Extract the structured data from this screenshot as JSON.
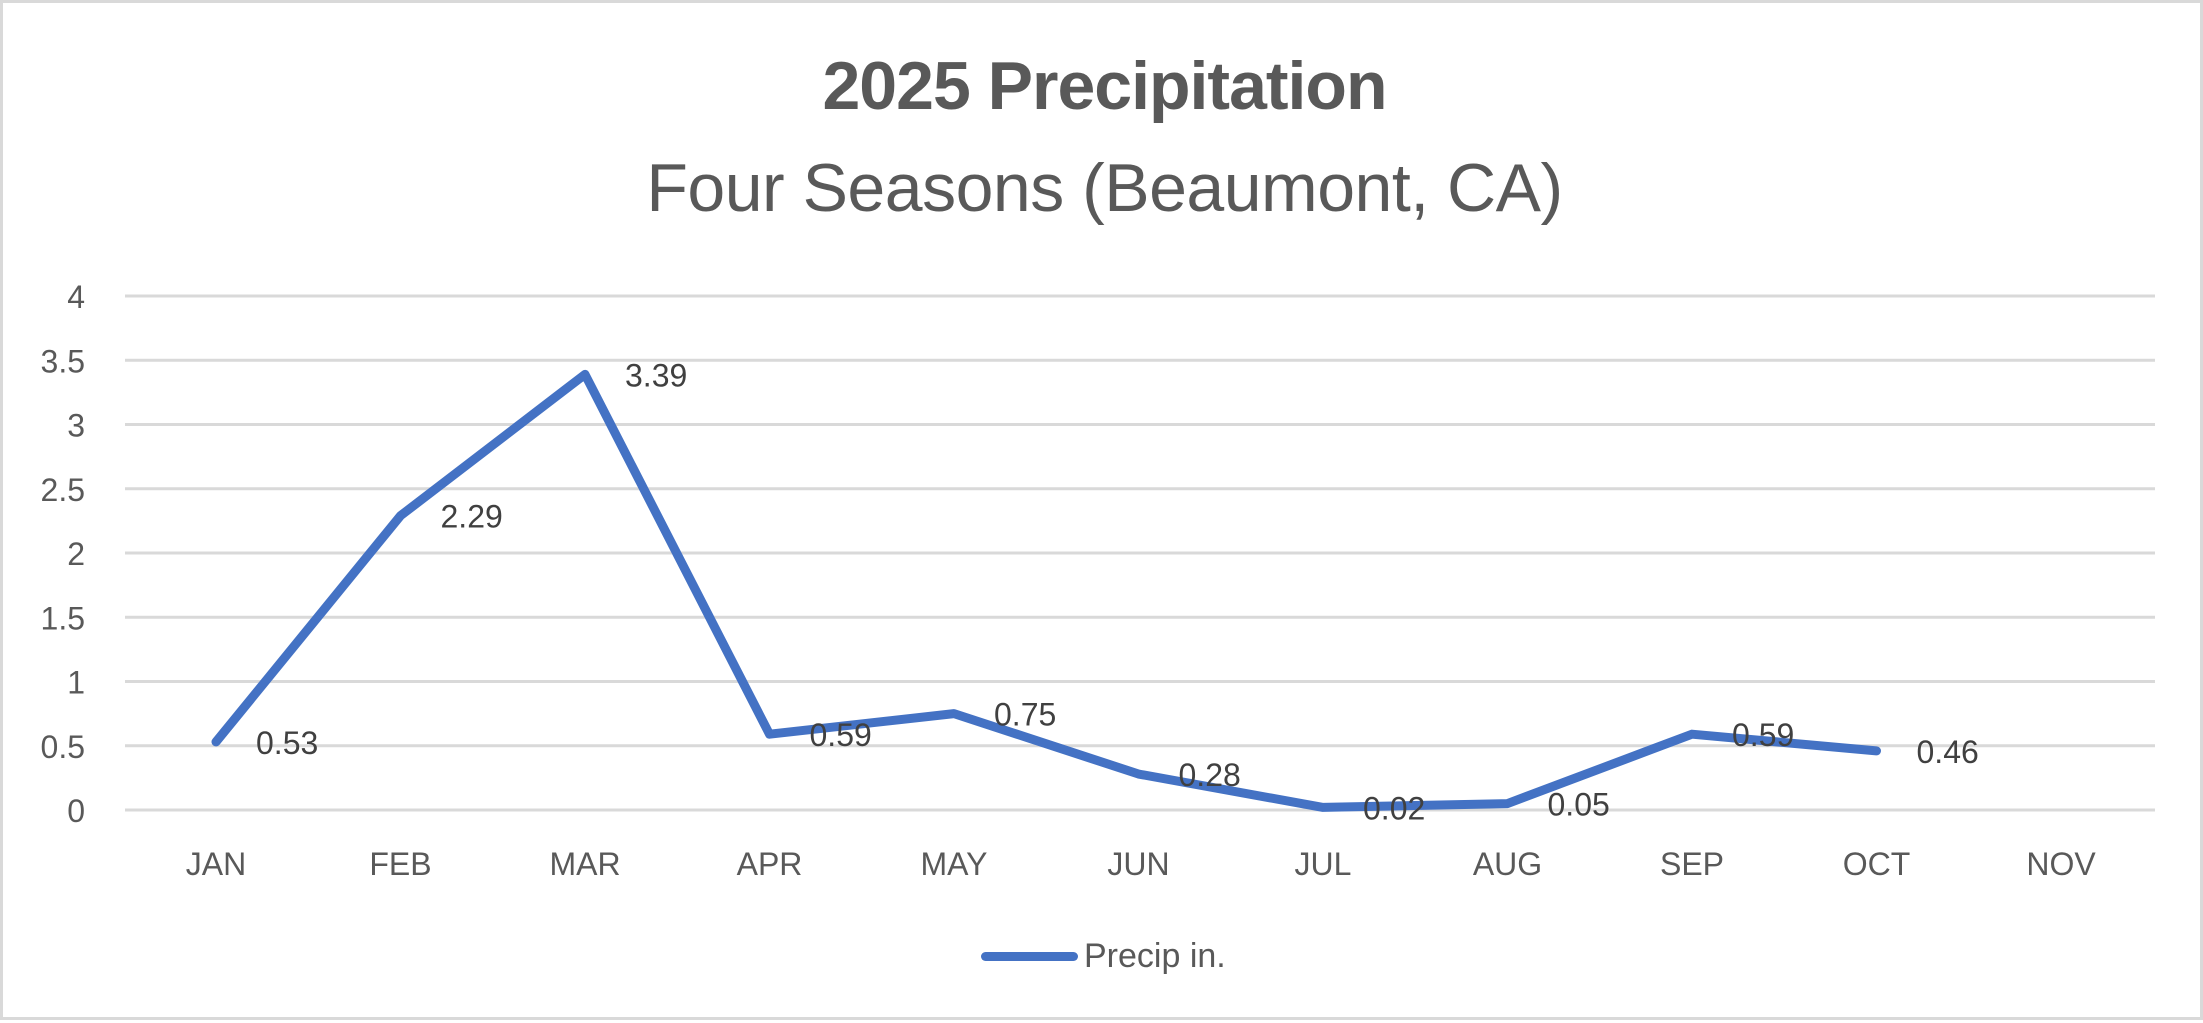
{
  "chart": {
    "title": "2025 Precipitation",
    "subtitle": "Four Seasons (Beaumont, CA)",
    "legend_label": "Precip in.",
    "series_color": "#4472c4",
    "gridline_color": "#d9d9d9",
    "text_color": "#595959",
    "label_color": "#404040"
  },
  "chart_data": {
    "type": "line",
    "title": "2025 Precipitation",
    "subtitle": "Four Seasons (Beaumont, CA)",
    "xlabel": "",
    "ylabel": "",
    "categories": [
      "JAN",
      "FEB",
      "MAR",
      "APR",
      "MAY",
      "JUN",
      "JUL",
      "AUG",
      "SEP",
      "OCT",
      "NOV"
    ],
    "series": [
      {
        "name": "Precip in.",
        "values": [
          0.53,
          2.29,
          3.39,
          0.59,
          0.75,
          0.28,
          0.02,
          0.05,
          0.59,
          0.46,
          null
        ],
        "data_labels": [
          "0.53",
          "2.29",
          "3.39",
          "0.59",
          "0.75",
          "0.28",
          "0.02",
          "0.05",
          "0.59",
          "0.46"
        ]
      }
    ],
    "ylim": [
      0,
      4
    ],
    "yticks": [
      "0",
      "0.5",
      "1",
      "1.5",
      "2",
      "2.5",
      "3",
      "3.5",
      "4"
    ],
    "grid": true,
    "legend_position": "bottom"
  }
}
